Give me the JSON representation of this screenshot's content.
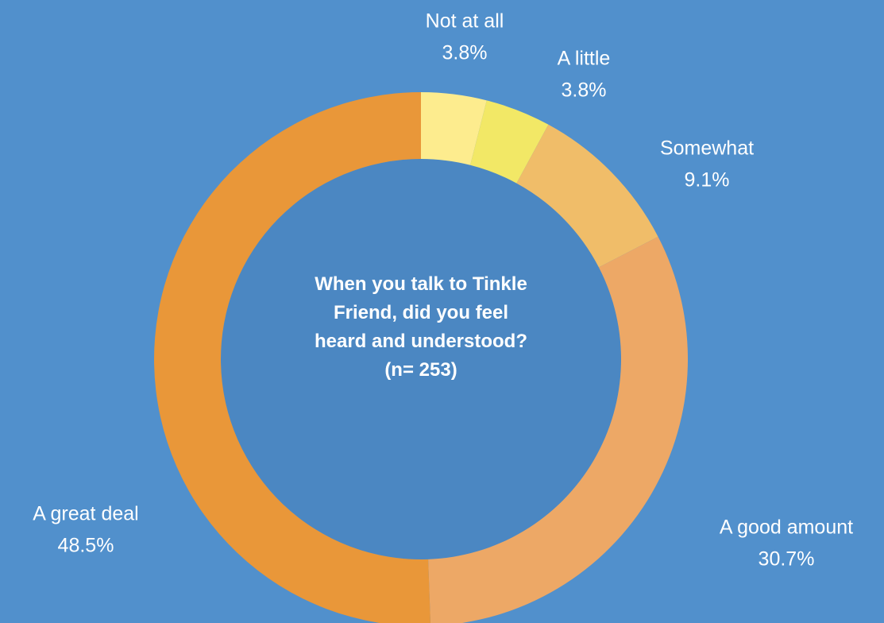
{
  "chart_data": {
    "type": "donut",
    "title": "When you talk to Tinkle Friend, did you feel heard and understood? (n= 253)",
    "categories": [
      "Not at all",
      "A little",
      "Somewhat",
      "A good amount",
      "A great deal"
    ],
    "values": [
      3.8,
      3.8,
      9.1,
      30.7,
      48.5
    ],
    "value_labels": [
      "3.8%",
      "3.8%",
      "9.1%",
      "30.7%",
      "48.5%"
    ],
    "colors": [
      "#fdec8e",
      "#f2e866",
      "#f0bd69",
      "#eda866",
      "#e99739"
    ]
  }
}
